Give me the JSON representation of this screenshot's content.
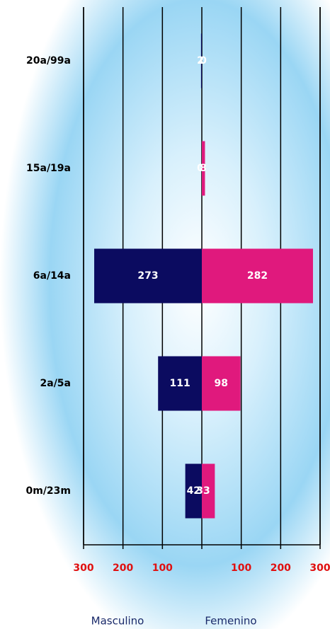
{
  "chart_data": {
    "type": "pyramid",
    "categories": [
      "20a/99a",
      "15a/19a",
      "6a/14a",
      "2a/5a",
      "0m/23m"
    ],
    "series": [
      {
        "name": "Masculino",
        "color": "#0b0b60",
        "side": "left",
        "values": [
          2,
          0,
          273,
          111,
          42
        ]
      },
      {
        "name": "Femenino",
        "color": "#e0197d",
        "side": "right",
        "values": [
          0,
          8,
          282,
          98,
          33
        ]
      }
    ],
    "xlim": [
      -300,
      300
    ],
    "xticks": [
      {
        "value": -300,
        "label": "300"
      },
      {
        "value": -200,
        "label": "200"
      },
      {
        "value": -100,
        "label": "100"
      },
      {
        "value": 100,
        "label": "100"
      },
      {
        "value": 200,
        "label": "200"
      },
      {
        "value": 300,
        "label": "300"
      }
    ],
    "grid": true
  }
}
